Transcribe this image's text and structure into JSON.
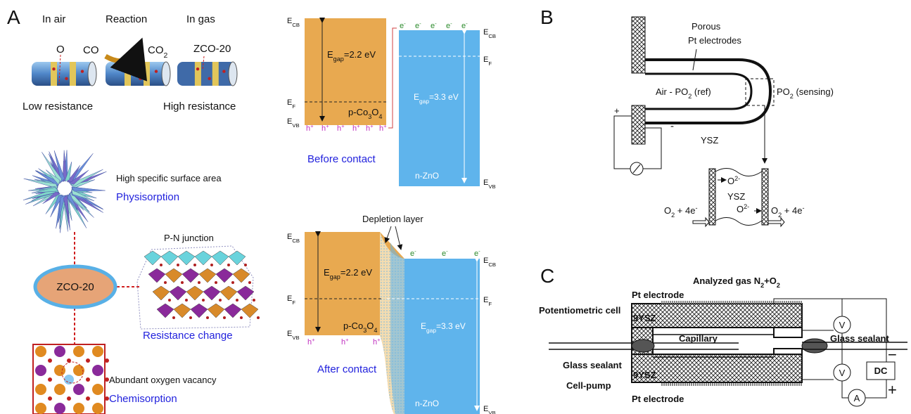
{
  "panel_a": {
    "label": "A",
    "stages": {
      "in_air": "In air",
      "reaction": "Reaction",
      "in_gas": "In gas",
      "o": "O",
      "co": "CO",
      "co2": [
        "CO",
        {
          "sub": "2"
        }
      ],
      "zco": "ZCO-20",
      "low": "Low resistance",
      "high": "High resistance"
    },
    "morphology": {
      "surface": "High specific surface area",
      "physisorption": "Physisorption",
      "pn": "P-N junction",
      "center": "ZCO-20",
      "resistance_change": "Resistance change",
      "vacancy": "Abundant oxygen vacancy",
      "chemisorption": "Chemisorption"
    },
    "before": {
      "p_cb": [
        "E",
        {
          "sub": "CB"
        }
      ],
      "p_f": [
        "E",
        {
          "sub": "F"
        }
      ],
      "p_vb": [
        "E",
        {
          "sub": "VB"
        }
      ],
      "p_gap": [
        "E",
        {
          "sub": "gap"
        },
        "=2.2 eV"
      ],
      "p_name": [
        "p-Co",
        {
          "sub": "3"
        },
        "O",
        {
          "sub": "4"
        }
      ],
      "holes": [
        [
          "h",
          {
            "sup": "+"
          }
        ],
        [
          "h",
          {
            "sup": "+"
          }
        ],
        [
          "h",
          {
            "sup": "+"
          }
        ],
        [
          "h",
          {
            "sup": "+"
          }
        ],
        [
          "h",
          {
            "sup": "+"
          }
        ],
        [
          "h",
          {
            "sup": "+"
          }
        ]
      ],
      "electrons": [
        [
          "e",
          {
            "sup": "-"
          }
        ],
        [
          "e",
          {
            "sup": "-"
          }
        ],
        [
          "e",
          {
            "sup": "-"
          }
        ],
        [
          "e",
          {
            "sup": "-"
          }
        ],
        [
          "e",
          {
            "sup": "-"
          }
        ]
      ],
      "n_cb": [
        "E",
        {
          "sub": "CB"
        }
      ],
      "n_f": [
        "E",
        {
          "sub": "F"
        }
      ],
      "n_gap": [
        "E",
        {
          "sub": "gap"
        },
        "=3.3 eV"
      ],
      "n_name": "n-ZnO",
      "n_vb": [
        "E",
        {
          "sub": "VB"
        }
      ],
      "caption": "Before contact"
    },
    "after": {
      "depletion": "Depletion layer",
      "p_cb": [
        "E",
        {
          "sub": "CB"
        }
      ],
      "p_f": [
        "E",
        {
          "sub": "F"
        }
      ],
      "p_vb": [
        "E",
        {
          "sub": "VB"
        }
      ],
      "p_gap": [
        "E",
        {
          "sub": "gap"
        },
        "=2.2 eV"
      ],
      "p_name": [
        "p-Co",
        {
          "sub": "3"
        },
        "O",
        {
          "sub": "4"
        }
      ],
      "holes": [
        [
          "h",
          {
            "sup": "+"
          }
        ],
        [
          "h",
          {
            "sup": "+"
          }
        ],
        [
          "h",
          {
            "sup": "+"
          }
        ]
      ],
      "electrons": [
        [
          "e",
          {
            "sup": "-"
          }
        ],
        [
          "e",
          {
            "sup": "-"
          }
        ],
        [
          "e",
          {
            "sup": "-"
          }
        ]
      ],
      "n_cb": [
        "E",
        {
          "sub": "CB"
        }
      ],
      "n_f": [
        "E",
        {
          "sub": "F"
        }
      ],
      "n_gap": [
        "E",
        {
          "sub": "gap"
        },
        "=3.3 eV"
      ],
      "n_name": "n-ZnO",
      "n_vb": [
        "E",
        {
          "sub": "VB"
        }
      ],
      "caption": "After contact"
    }
  },
  "panel_b": {
    "label": "B",
    "porous": "Porous",
    "pt": "Pt electrodes",
    "air": [
      "Air - PO",
      {
        "sub": "2"
      },
      " (ref)"
    ],
    "sensing": [
      "PO",
      {
        "sub": "2"
      },
      " (sensing)"
    ],
    "plus": "+",
    "minus": "-",
    "ysz": "YSZ",
    "o2_ion_1": [
      "O",
      {
        "sup": "2-"
      }
    ],
    "ysz_2": "YSZ",
    "reaction_left": [
      "O",
      {
        "sub": "2"
      },
      " + 4e",
      {
        "sup": "-"
      }
    ],
    "o2_ion_2": [
      "O",
      {
        "sup": "2-"
      }
    ],
    "reaction_right": [
      "O",
      {
        "sub": "2"
      },
      " + 4e",
      {
        "sup": "-"
      }
    ]
  },
  "panel_c": {
    "label": "C",
    "gas": [
      "Analyzed gas N",
      {
        "sub": "2"
      },
      "+O",
      {
        "sub": "2"
      }
    ],
    "pt_top": "Pt electrode",
    "potentiometric": "Potentiometric cell",
    "ysz_top": "9YSZ",
    "capillary": "Capillary",
    "sealant_right": "Glass sealant",
    "sealant_left": "Glass sealant",
    "cell_pump": "Cell-pump",
    "ysz_bottom": "9YSZ",
    "pt_bottom": "Pt electrode",
    "v_top": "V",
    "v_bottom": "V",
    "dc": "DC",
    "a": "A",
    "minus": "−",
    "plus": "+"
  }
}
